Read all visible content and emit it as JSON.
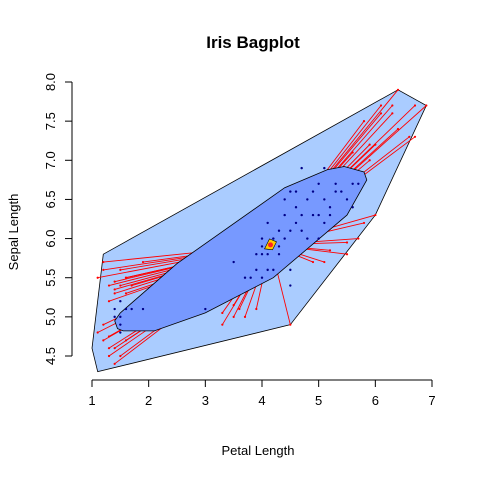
{
  "chart_data": {
    "type": "scatter",
    "subtype": "bagplot",
    "title": "Iris Bagplot",
    "xlabel": "Petal Length",
    "ylabel": "Sepal Length",
    "xlim": [
      1,
      7
    ],
    "ylim": [
      4.5,
      8.0
    ],
    "x_ticks": [
      "1",
      "2",
      "3",
      "4",
      "5",
      "6",
      "7"
    ],
    "y_ticks": [
      "4.5",
      "5.0",
      "5.5",
      "6.0",
      "6.5",
      "7.0",
      "7.5",
      "8.0"
    ],
    "grid": false,
    "legend": "none",
    "colors": {
      "fence": "#aaccff",
      "bag": "#7799ff",
      "center": "#ff2222",
      "whisker": "#ff0000",
      "points": "#000088",
      "border": "#000000"
    },
    "center": [
      4.15,
      5.92
    ],
    "loop": [
      [
        1.0,
        4.6
      ],
      [
        1.1,
        4.3
      ],
      [
        4.5,
        4.9
      ],
      [
        6.0,
        6.3
      ],
      [
        6.9,
        7.7
      ],
      [
        6.4,
        7.9
      ],
      [
        1.2,
        5.8
      ]
    ],
    "bag": [
      [
        1.45,
        4.85
      ],
      [
        1.55,
        4.82
      ],
      [
        2.1,
        4.82
      ],
      [
        3.0,
        5.05
      ],
      [
        4.2,
        5.5
      ],
      [
        5.5,
        6.3
      ],
      [
        5.85,
        6.75
      ],
      [
        5.8,
        6.85
      ],
      [
        5.45,
        6.92
      ],
      [
        5.15,
        6.88
      ],
      [
        4.4,
        6.65
      ],
      [
        2.5,
        5.68
      ],
      [
        1.5,
        5.05
      ],
      [
        1.4,
        4.95
      ]
    ],
    "points": [
      [
        1.4,
        5.1
      ],
      [
        1.5,
        5.0
      ],
      [
        1.5,
        4.9
      ],
      [
        1.4,
        5.0
      ],
      [
        1.6,
        5.1
      ],
      [
        1.5,
        5.2
      ],
      [
        1.7,
        5.1
      ],
      [
        1.9,
        5.1
      ],
      [
        1.5,
        4.8
      ],
      [
        3.0,
        5.1
      ],
      [
        3.5,
        5.7
      ],
      [
        3.7,
        5.5
      ],
      [
        3.8,
        5.5
      ],
      [
        3.9,
        5.6
      ],
      [
        3.9,
        5.8
      ],
      [
        4.0,
        5.5
      ],
      [
        4.0,
        5.8
      ],
      [
        4.0,
        6.0
      ],
      [
        4.1,
        5.6
      ],
      [
        4.1,
        5.8
      ],
      [
        4.1,
        6.2
      ],
      [
        4.2,
        5.6
      ],
      [
        4.2,
        5.9
      ],
      [
        4.2,
        6.0
      ],
      [
        4.3,
        5.8
      ],
      [
        4.3,
        6.1
      ],
      [
        4.4,
        6.3
      ],
      [
        4.4,
        6.5
      ],
      [
        4.5,
        5.6
      ],
      [
        4.5,
        6.1
      ],
      [
        4.5,
        6.6
      ],
      [
        4.6,
        6.4
      ],
      [
        4.7,
        6.1
      ],
      [
        4.7,
        6.3
      ],
      [
        4.8,
        6.5
      ],
      [
        4.9,
        6.3
      ],
      [
        5.0,
        6.7
      ],
      [
        5.1,
        6.5
      ],
      [
        5.1,
        6.9
      ],
      [
        5.2,
        6.3
      ],
      [
        4.8,
        6.0
      ],
      [
        4.9,
        6.6
      ],
      [
        4.6,
        6.2
      ],
      [
        5.0,
        6.3
      ],
      [
        5.3,
        6.7
      ],
      [
        5.4,
        6.6
      ],
      [
        5.5,
        6.5
      ],
      [
        5.6,
        6.4
      ],
      [
        5.6,
        6.7
      ],
      [
        5.7,
        6.7
      ],
      [
        4.5,
        5.4
      ],
      [
        4.4,
        6.0
      ],
      [
        4.3,
        5.9
      ],
      [
        4.7,
        6.9
      ],
      [
        5.2,
        6.4
      ],
      [
        4.6,
        6.6
      ],
      [
        5.1,
        6.2
      ],
      [
        5.3,
        6.6
      ],
      [
        4.0,
        5.9
      ],
      [
        5.0,
        6.0
      ]
    ],
    "outliers": [
      [
        1.4,
        4.4
      ],
      [
        1.3,
        4.5
      ],
      [
        1.3,
        4.6
      ],
      [
        1.2,
        4.7
      ],
      [
        1.1,
        4.8
      ],
      [
        1.2,
        4.9
      ],
      [
        1.3,
        4.75
      ],
      [
        1.4,
        4.6
      ],
      [
        1.6,
        4.7
      ],
      [
        1.5,
        4.5
      ],
      [
        1.1,
        5.5
      ],
      [
        1.2,
        5.6
      ],
      [
        1.3,
        5.4
      ],
      [
        1.5,
        5.4
      ],
      [
        1.7,
        5.4
      ],
      [
        1.2,
        5.7
      ],
      [
        1.3,
        5.2
      ],
      [
        1.4,
        5.3
      ],
      [
        1.6,
        5.5
      ],
      [
        1.4,
        5.35
      ],
      [
        1.9,
        5.7
      ],
      [
        1.6,
        5.3
      ],
      [
        1.5,
        5.6
      ],
      [
        1.6,
        5.5
      ],
      [
        1.4,
        5.45
      ],
      [
        5.6,
        7.1
      ],
      [
        5.9,
        7.2
      ],
      [
        6.1,
        7.6
      ],
      [
        6.1,
        7.7
      ],
      [
        6.7,
        7.7
      ],
      [
        6.6,
        7.3
      ],
      [
        6.4,
        7.4
      ],
      [
        6.3,
        7.6
      ],
      [
        5.8,
        7.5
      ],
      [
        6.0,
        7.2
      ],
      [
        6.3,
        7.7
      ],
      [
        5.9,
        7.0
      ],
      [
        6.9,
        7.7
      ],
      [
        6.7,
        7.3
      ],
      [
        6.4,
        7.9
      ],
      [
        3.3,
        4.9
      ],
      [
        3.5,
        5.0
      ],
      [
        4.5,
        4.9
      ],
      [
        3.6,
        5.1
      ],
      [
        3.9,
        5.1
      ],
      [
        3.3,
        5.05
      ],
      [
        3.7,
        5.0
      ],
      [
        3.5,
        5.15
      ],
      [
        5.8,
        6.2
      ],
      [
        6.0,
        6.3
      ],
      [
        5.5,
        5.8
      ],
      [
        5.1,
        5.7
      ],
      [
        4.9,
        5.7
      ],
      [
        5.7,
        6.0
      ],
      [
        5.5,
        5.95
      ],
      [
        5.2,
        5.85
      ]
    ]
  }
}
